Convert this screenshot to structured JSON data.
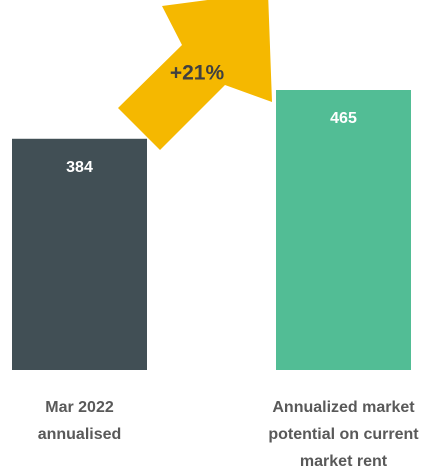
{
  "chart_data": {
    "type": "bar",
    "categories": [
      "Mar 2022\nannualised",
      "Annualized market\npotential on current\nmarket rent"
    ],
    "values": [
      384,
      465
    ],
    "colors": [
      "#414f55",
      "#52bd95"
    ],
    "annotation": "+21%",
    "annotation_color": "#f5b800"
  }
}
